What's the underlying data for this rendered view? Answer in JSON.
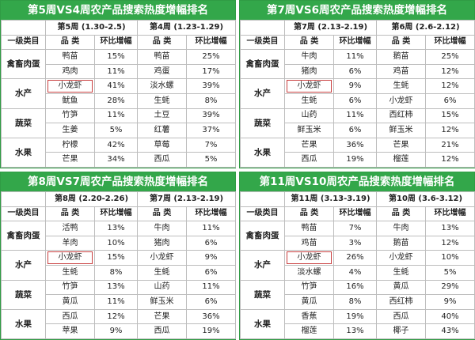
{
  "labels": {
    "category_col": "一级类目",
    "product_col": "品 类",
    "growth_col": "环比增幅"
  },
  "colors": {
    "title_bg": "#33a74a",
    "highlight": "#c94040"
  },
  "panels": [
    {
      "title": "第5周VS4周农产品搜索热度增幅排名",
      "week_a": "第5周 (1.30-2.5)",
      "week_b": "第4周 (1.23-1.29)",
      "groups": [
        {
          "category": "禽畜肉蛋",
          "rows": [
            {
              "a_name": "鸭苗",
              "a_val": "15%",
              "b_name": "鸭苗",
              "b_val": "25%"
            },
            {
              "a_name": "鸡肉",
              "a_val": "11%",
              "b_name": "鸡蛋",
              "b_val": "17%"
            }
          ]
        },
        {
          "category": "水产",
          "rows": [
            {
              "a_name": "小龙虾",
              "a_val": "41%",
              "b_name": "淡水螺",
              "b_val": "39%",
              "highlight": true
            },
            {
              "a_name": "鱿鱼",
              "a_val": "28%",
              "b_name": "生蚝",
              "b_val": "8%"
            }
          ]
        },
        {
          "category": "蔬菜",
          "rows": [
            {
              "a_name": "竹笋",
              "a_val": "11%",
              "b_name": "土豆",
              "b_val": "39%"
            },
            {
              "a_name": "生姜",
              "a_val": "5%",
              "b_name": "红薯",
              "b_val": "37%"
            }
          ]
        },
        {
          "category": "水果",
          "rows": [
            {
              "a_name": "柠檬",
              "a_val": "42%",
              "b_name": "草莓",
              "b_val": "7%"
            },
            {
              "a_name": "芒果",
              "a_val": "34%",
              "b_name": "西瓜",
              "b_val": "5%"
            }
          ]
        }
      ]
    },
    {
      "title": "第7周VS6周农产品搜索热度增幅排名",
      "week_a": "第7周 (2.13-2.19)",
      "week_b": "第6周 (2.6-2.12)",
      "groups": [
        {
          "category": "禽畜肉蛋",
          "rows": [
            {
              "a_name": "牛肉",
              "a_val": "11%",
              "b_name": "鹅苗",
              "b_val": "25%"
            },
            {
              "a_name": "猪肉",
              "a_val": "6%",
              "b_name": "鸡苗",
              "b_val": "12%"
            }
          ]
        },
        {
          "category": "水产",
          "rows": [
            {
              "a_name": "小龙虾",
              "a_val": "9%",
              "b_name": "生蚝",
              "b_val": "12%",
              "highlight": true
            },
            {
              "a_name": "生蚝",
              "a_val": "6%",
              "b_name": "小龙虾",
              "b_val": "6%"
            }
          ]
        },
        {
          "category": "蔬菜",
          "rows": [
            {
              "a_name": "山药",
              "a_val": "11%",
              "b_name": "西红柿",
              "b_val": "15%"
            },
            {
              "a_name": "鲜玉米",
              "a_val": "6%",
              "b_name": "鲜玉米",
              "b_val": "12%"
            }
          ]
        },
        {
          "category": "水果",
          "rows": [
            {
              "a_name": "芒果",
              "a_val": "36%",
              "b_name": "芒果",
              "b_val": "21%"
            },
            {
              "a_name": "西瓜",
              "a_val": "19%",
              "b_name": "榴莲",
              "b_val": "12%"
            }
          ]
        }
      ]
    },
    {
      "title": "第8周VS7周农产品搜索热度增幅排名",
      "week_a": "第8周 (2.20-2.26)",
      "week_b": "第7周 (2.13-2.19)",
      "groups": [
        {
          "category": "禽畜肉蛋",
          "rows": [
            {
              "a_name": "活鸭",
              "a_val": "13%",
              "b_name": "牛肉",
              "b_val": "11%"
            },
            {
              "a_name": "羊肉",
              "a_val": "10%",
              "b_name": "猪肉",
              "b_val": "6%"
            }
          ]
        },
        {
          "category": "水产",
          "rows": [
            {
              "a_name": "小龙虾",
              "a_val": "15%",
              "b_name": "小龙虾",
              "b_val": "9%",
              "highlight": true
            },
            {
              "a_name": "生蚝",
              "a_val": "8%",
              "b_name": "生蚝",
              "b_val": "6%"
            }
          ]
        },
        {
          "category": "蔬菜",
          "rows": [
            {
              "a_name": "竹笋",
              "a_val": "13%",
              "b_name": "山药",
              "b_val": "11%"
            },
            {
              "a_name": "黄瓜",
              "a_val": "11%",
              "b_name": "鲜玉米",
              "b_val": "6%"
            }
          ]
        },
        {
          "category": "水果",
          "rows": [
            {
              "a_name": "西瓜",
              "a_val": "12%",
              "b_name": "芒果",
              "b_val": "36%"
            },
            {
              "a_name": "苹果",
              "a_val": "9%",
              "b_name": "西瓜",
              "b_val": "19%"
            }
          ]
        }
      ]
    },
    {
      "title": "第11周VS10周农产品搜索热度增幅排名",
      "week_a": "第11周 (3.13-3.19)",
      "week_b": "第10周 (3.6-3.12)",
      "groups": [
        {
          "category": "禽畜肉蛋",
          "rows": [
            {
              "a_name": "鸭苗",
              "a_val": "7%",
              "b_name": "牛肉",
              "b_val": "13%"
            },
            {
              "a_name": "鸡苗",
              "a_val": "3%",
              "b_name": "鹅苗",
              "b_val": "12%"
            }
          ]
        },
        {
          "category": "水产",
          "rows": [
            {
              "a_name": "小龙虾",
              "a_val": "26%",
              "b_name": "小龙虾",
              "b_val": "10%",
              "highlight": true
            },
            {
              "a_name": "淡水螺",
              "a_val": "4%",
              "b_name": "生蚝",
              "b_val": "5%"
            }
          ]
        },
        {
          "category": "蔬菜",
          "rows": [
            {
              "a_name": "竹笋",
              "a_val": "16%",
              "b_name": "黄瓜",
              "b_val": "29%"
            },
            {
              "a_name": "黄瓜",
              "a_val": "8%",
              "b_name": "西红柿",
              "b_val": "9%"
            }
          ]
        },
        {
          "category": "水果",
          "rows": [
            {
              "a_name": "香蕉",
              "a_val": "19%",
              "b_name": "西瓜",
              "b_val": "40%"
            },
            {
              "a_name": "榴莲",
              "a_val": "13%",
              "b_name": "椰子",
              "b_val": "43%"
            }
          ]
        }
      ]
    }
  ]
}
